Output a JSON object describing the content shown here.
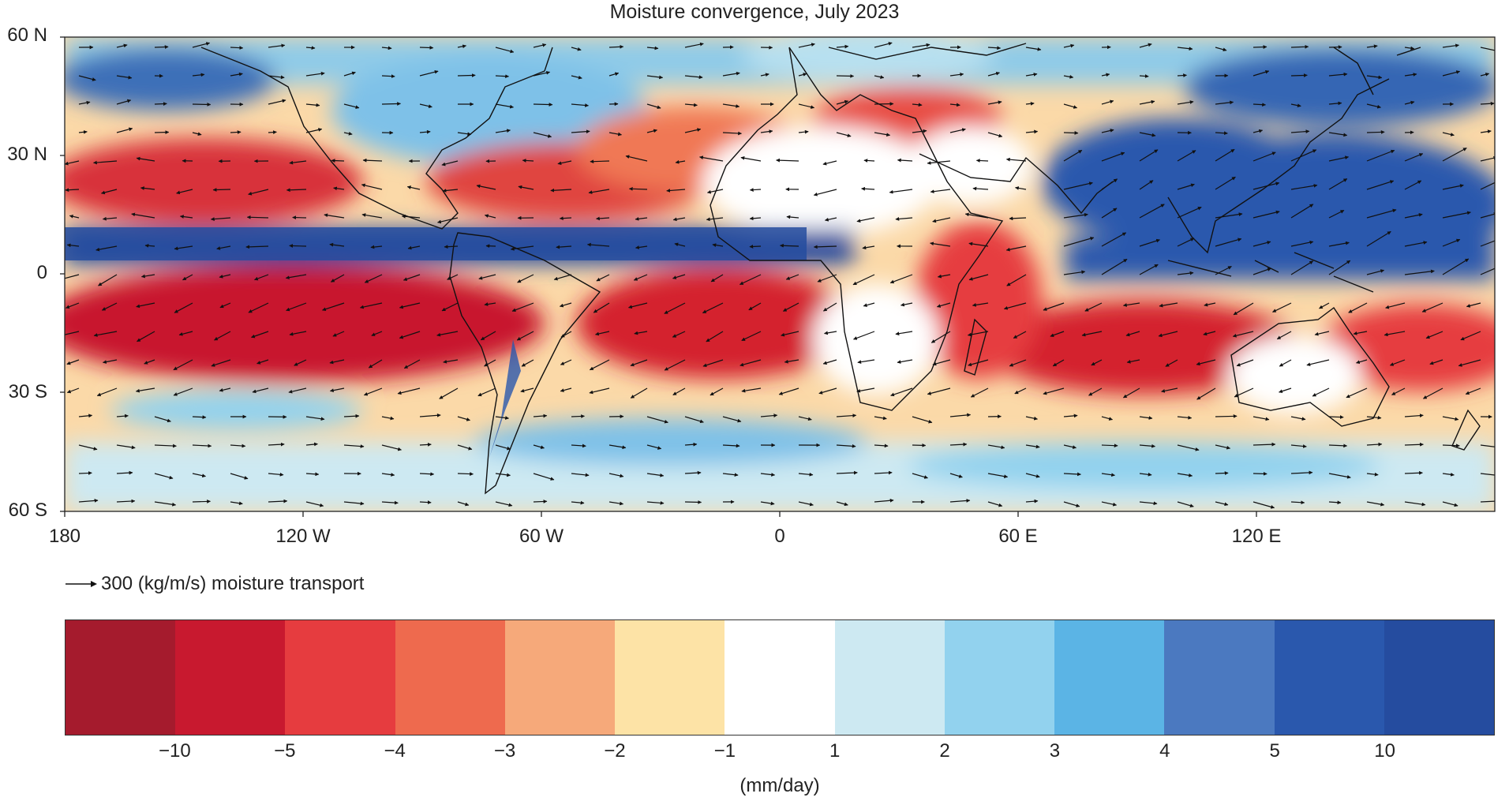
{
  "title": "Moisture convergence, July 2023",
  "map": {
    "lat_labels": [
      "60 N",
      "30 N",
      "0",
      "30 S",
      "60 S"
    ],
    "lon_labels": [
      "180",
      "120 W",
      "60 W",
      "0",
      "60 E",
      "120 E"
    ],
    "extent": {
      "lon": [
        -180,
        180
      ],
      "lat": [
        -60,
        60
      ]
    },
    "field": "moisture convergence (mm/day)",
    "vectors": "moisture transport"
  },
  "transport_key": {
    "label": "300 (kg/m/s) moisture transport"
  },
  "colorbar": {
    "unit": "(mm/day)",
    "ticks": [
      "−10",
      "−5",
      "−4",
      "−3",
      "−2",
      "−1",
      "1",
      "2",
      "3",
      "4",
      "5",
      "10"
    ],
    "colors": [
      "#a51b2d",
      "#c8192f",
      "#e63c3f",
      "#ee6a4e",
      "#f6a97a",
      "#fde3a6",
      "#ffffff",
      "#cde9f2",
      "#92d2ee",
      "#5bb4e5",
      "#4b79c0",
      "#2a58ad",
      "#254c9f"
    ]
  }
}
